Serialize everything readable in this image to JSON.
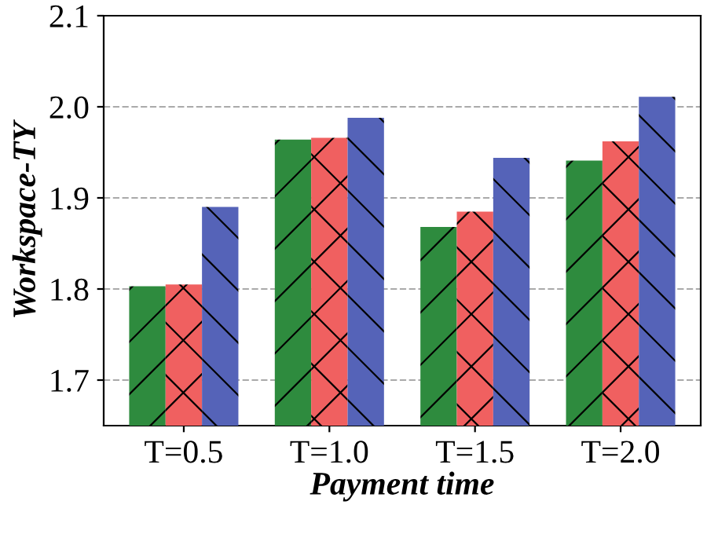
{
  "chart_data": {
    "type": "bar",
    "xlabel": "Payment time",
    "ylabel": "Workspace-TY",
    "categories": [
      "T=0.5",
      "T=1.0",
      "T=1.5",
      "T=2.0"
    ],
    "series": [
      {
        "color": "#2e8b3e",
        "values": [
          1.803,
          1.964,
          1.868,
          1.941
        ]
      },
      {
        "color": "#f06060",
        "values": [
          1.805,
          1.966,
          1.885,
          1.962
        ]
      },
      {
        "color": "#5563b8",
        "values": [
          1.89,
          1.988,
          1.944,
          2.011
        ]
      }
    ],
    "ylim": [
      1.65,
      2.1
    ],
    "yticks": [
      1.7,
      1.8,
      1.9,
      {
        "value": 2,
        "label": "2.0"
      },
      2.1
    ],
    "grid": "y",
    "legend": false
  }
}
